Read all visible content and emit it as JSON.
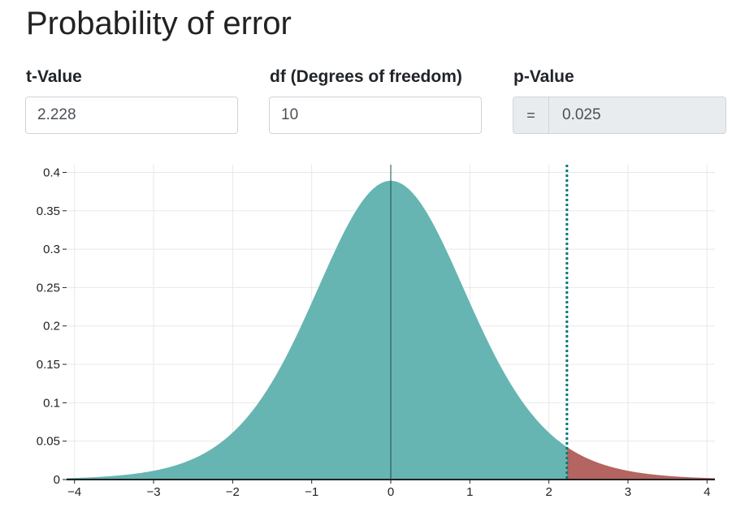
{
  "page": {
    "title": "Probability of error"
  },
  "fields": {
    "t_value": {
      "label": "t-Value",
      "value": "2.228"
    },
    "df": {
      "label": "df (Degrees of freedom)",
      "value": "10"
    },
    "p_value": {
      "label": "p-Value",
      "prefix": "=",
      "value": "0.025"
    }
  },
  "chart_data": {
    "type": "area",
    "distribution": "Student t",
    "df": 10,
    "critical_t": 2.228,
    "tail_area": 0.025,
    "xlim": [
      -4.1,
      4.1
    ],
    "ylim": [
      0,
      0.41
    ],
    "x_ticks": [
      -4,
      -3,
      -2,
      -1,
      0,
      1,
      2,
      3,
      4
    ],
    "x_tick_labels": [
      "−4",
      "−3",
      "−2",
      "−1",
      "0",
      "1",
      "2",
      "3",
      "4"
    ],
    "y_ticks": [
      0,
      0.05,
      0.1,
      0.15,
      0.2,
      0.25,
      0.3,
      0.35,
      0.4
    ],
    "y_tick_labels": [
      "0",
      "0.05",
      "0.1",
      "0.15",
      "0.2",
      "0.25",
      "0.3",
      "0.35",
      "0.4"
    ],
    "grid": true,
    "colors": {
      "body": "#66b5b2",
      "tail": "#b46461",
      "critical_line": "#007a78",
      "axis": "#222222",
      "grid": "#e8e8e8"
    }
  }
}
